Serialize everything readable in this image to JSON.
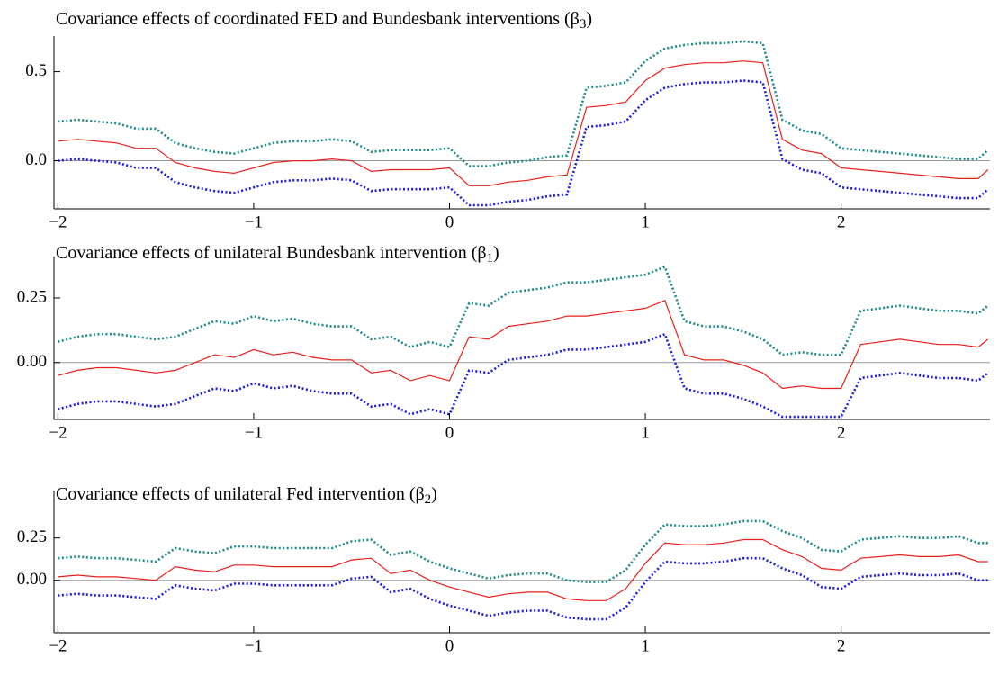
{
  "chart_data": [
    {
      "type": "line",
      "title": "Covariance effects of coordinated FED and Bundesbank interventions (β",
      "title_subscript": "3",
      "title_close": ")",
      "x": [
        -2,
        -1.9,
        -1.8,
        -1.7,
        -1.6,
        -1.5,
        -1.4,
        -1.3,
        -1.2,
        -1.1,
        -1,
        -0.9,
        -0.8,
        -0.7,
        -0.6,
        -0.5,
        -0.4,
        -0.3,
        -0.2,
        -0.1,
        0,
        0.1,
        0.2,
        0.3,
        0.4,
        0.5,
        0.6,
        0.7,
        0.8,
        0.9,
        1,
        1.1,
        1.2,
        1.3,
        1.4,
        1.5,
        1.6,
        1.7,
        1.8,
        1.9,
        2,
        2.1,
        2.2,
        2.3,
        2.4,
        2.5,
        2.6,
        2.7,
        2.75
      ],
      "series": [
        {
          "color": "#1a8a8a",
          "style": "dotted",
          "values": [
            0.22,
            0.23,
            0.22,
            0.21,
            0.18,
            0.18,
            0.1,
            0.07,
            0.05,
            0.04,
            0.07,
            0.1,
            0.11,
            0.11,
            0.12,
            0.11,
            0.05,
            0.06,
            0.06,
            0.06,
            0.07,
            -0.03,
            -0.03,
            -0.01,
            0.0,
            0.02,
            0.03,
            0.41,
            0.42,
            0.44,
            0.56,
            0.63,
            0.65,
            0.66,
            0.66,
            0.67,
            0.66,
            0.23,
            0.17,
            0.15,
            0.07,
            0.06,
            0.05,
            0.04,
            0.03,
            0.02,
            0.01,
            0.01,
            0.06
          ]
        },
        {
          "color": "#e8201c",
          "style": "solid",
          "values": [
            0.11,
            0.12,
            0.11,
            0.1,
            0.07,
            0.07,
            -0.01,
            -0.04,
            -0.06,
            -0.07,
            -0.04,
            -0.01,
            0.0,
            0.0,
            0.01,
            0.0,
            -0.06,
            -0.05,
            -0.05,
            -0.05,
            -0.04,
            -0.14,
            -0.14,
            -0.12,
            -0.11,
            -0.09,
            -0.08,
            0.3,
            0.31,
            0.33,
            0.45,
            0.52,
            0.54,
            0.55,
            0.55,
            0.56,
            0.55,
            0.12,
            0.06,
            0.04,
            -0.04,
            -0.05,
            -0.06,
            -0.07,
            -0.08,
            -0.09,
            -0.1,
            -0.1,
            -0.05
          ]
        },
        {
          "color": "#1a1ae0",
          "style": "dotted",
          "values": [
            0.0,
            0.01,
            0.0,
            -0.01,
            -0.04,
            -0.04,
            -0.12,
            -0.15,
            -0.17,
            -0.18,
            -0.15,
            -0.12,
            -0.11,
            -0.11,
            -0.1,
            -0.11,
            -0.17,
            -0.16,
            -0.16,
            -0.16,
            -0.15,
            -0.25,
            -0.25,
            -0.23,
            -0.22,
            -0.2,
            -0.19,
            0.19,
            0.2,
            0.22,
            0.34,
            0.41,
            0.43,
            0.44,
            0.44,
            0.45,
            0.44,
            0.01,
            -0.05,
            -0.07,
            -0.15,
            -0.16,
            -0.17,
            -0.18,
            -0.19,
            -0.2,
            -0.21,
            -0.21,
            -0.16
          ]
        }
      ],
      "xlim": [
        -2.02,
        2.76
      ],
      "xticks": [
        {
          "value": -2,
          "label": "−2"
        },
        {
          "value": -1,
          "label": "−1"
        },
        0,
        1,
        2
      ],
      "ylim": [
        -0.27,
        0.7
      ],
      "yticks": [
        {
          "value": 0,
          "label": "0.0"
        },
        0.5
      ],
      "reference_line": 0
    },
    {
      "type": "line",
      "title": "Covariance effects of unilateral Bundesbank intervention (β",
      "title_subscript": "1",
      "title_close": ")",
      "x": [
        -2,
        -1.9,
        -1.8,
        -1.7,
        -1.6,
        -1.5,
        -1.4,
        -1.3,
        -1.2,
        -1.1,
        -1,
        -0.9,
        -0.8,
        -0.7,
        -0.6,
        -0.5,
        -0.4,
        -0.3,
        -0.2,
        -0.1,
        0,
        0.1,
        0.2,
        0.3,
        0.4,
        0.5,
        0.6,
        0.7,
        0.8,
        0.9,
        1,
        1.1,
        1.2,
        1.3,
        1.4,
        1.5,
        1.6,
        1.7,
        1.8,
        1.9,
        2,
        2.1,
        2.2,
        2.3,
        2.4,
        2.5,
        2.6,
        2.7,
        2.75
      ],
      "series": [
        {
          "color": "#1a8a8a",
          "style": "dotted",
          "values": [
            0.08,
            0.1,
            0.11,
            0.11,
            0.1,
            0.09,
            0.1,
            0.13,
            0.16,
            0.15,
            0.18,
            0.16,
            0.17,
            0.15,
            0.14,
            0.14,
            0.09,
            0.1,
            0.06,
            0.08,
            0.06,
            0.23,
            0.22,
            0.27,
            0.28,
            0.29,
            0.31,
            0.31,
            0.32,
            0.33,
            0.34,
            0.37,
            0.16,
            0.14,
            0.14,
            0.12,
            0.09,
            0.03,
            0.04,
            0.03,
            0.03,
            0.2,
            0.21,
            0.22,
            0.21,
            0.2,
            0.2,
            0.19,
            0.22
          ]
        },
        {
          "color": "#e8201c",
          "style": "solid",
          "values": [
            -0.05,
            -0.03,
            -0.02,
            -0.02,
            -0.03,
            -0.04,
            -0.03,
            0.0,
            0.03,
            0.02,
            0.05,
            0.03,
            0.04,
            0.02,
            0.01,
            0.01,
            -0.04,
            -0.03,
            -0.07,
            -0.05,
            -0.07,
            0.1,
            0.09,
            0.14,
            0.15,
            0.16,
            0.18,
            0.18,
            0.19,
            0.2,
            0.21,
            0.24,
            0.03,
            0.01,
            0.01,
            -0.01,
            -0.04,
            -0.1,
            -0.09,
            -0.1,
            -0.1,
            0.07,
            0.08,
            0.09,
            0.08,
            0.07,
            0.07,
            0.06,
            0.09
          ]
        },
        {
          "color": "#1a1ae0",
          "style": "dotted",
          "values": [
            -0.18,
            -0.16,
            -0.15,
            -0.15,
            -0.16,
            -0.17,
            -0.16,
            -0.13,
            -0.1,
            -0.11,
            -0.08,
            -0.1,
            -0.09,
            -0.11,
            -0.12,
            -0.12,
            -0.17,
            -0.16,
            -0.2,
            -0.18,
            -0.2,
            -0.03,
            -0.04,
            0.01,
            0.02,
            0.03,
            0.05,
            0.05,
            0.06,
            0.07,
            0.08,
            0.11,
            -0.1,
            -0.12,
            -0.12,
            -0.14,
            -0.17,
            -0.21,
            -0.21,
            -0.21,
            -0.21,
            -0.06,
            -0.05,
            -0.04,
            -0.05,
            -0.06,
            -0.06,
            -0.07,
            -0.04
          ]
        }
      ],
      "xlim": [
        -2.02,
        2.76
      ],
      "xticks": [
        {
          "value": -2,
          "label": "−2"
        },
        {
          "value": -1,
          "label": "−1"
        },
        0,
        1,
        2
      ],
      "ylim": [
        -0.22,
        0.41
      ],
      "yticks": [
        {
          "value": 0,
          "label": "0.00"
        },
        0.25
      ],
      "reference_line": 0
    },
    {
      "type": "line",
      "title": "Covariance effects of unilateral Fed intervention (β",
      "title_subscript": "2",
      "title_close": ")",
      "x": [
        -2,
        -1.9,
        -1.8,
        -1.7,
        -1.6,
        -1.5,
        -1.4,
        -1.3,
        -1.2,
        -1.1,
        -1,
        -0.9,
        -0.8,
        -0.7,
        -0.6,
        -0.5,
        -0.4,
        -0.3,
        -0.2,
        -0.1,
        0,
        0.1,
        0.2,
        0.3,
        0.4,
        0.5,
        0.6,
        0.7,
        0.8,
        0.9,
        1,
        1.1,
        1.2,
        1.3,
        1.4,
        1.5,
        1.6,
        1.7,
        1.8,
        1.9,
        2,
        2.1,
        2.2,
        2.3,
        2.4,
        2.5,
        2.6,
        2.7,
        2.75
      ],
      "series": [
        {
          "color": "#1a8a8a",
          "style": "dotted",
          "values": [
            0.13,
            0.14,
            0.13,
            0.13,
            0.12,
            0.11,
            0.19,
            0.17,
            0.16,
            0.2,
            0.2,
            0.19,
            0.19,
            0.19,
            0.19,
            0.23,
            0.24,
            0.15,
            0.17,
            0.11,
            0.07,
            0.04,
            0.01,
            0.03,
            0.04,
            0.04,
            0.0,
            -0.01,
            -0.01,
            0.06,
            0.21,
            0.33,
            0.32,
            0.32,
            0.33,
            0.35,
            0.35,
            0.29,
            0.25,
            0.18,
            0.17,
            0.24,
            0.25,
            0.26,
            0.25,
            0.25,
            0.26,
            0.22,
            0.22
          ]
        },
        {
          "color": "#e8201c",
          "style": "solid",
          "values": [
            0.02,
            0.03,
            0.02,
            0.02,
            0.01,
            0.0,
            0.08,
            0.06,
            0.05,
            0.09,
            0.09,
            0.08,
            0.08,
            0.08,
            0.08,
            0.12,
            0.13,
            0.04,
            0.06,
            0.0,
            -0.04,
            -0.07,
            -0.1,
            -0.08,
            -0.07,
            -0.07,
            -0.11,
            -0.12,
            -0.12,
            -0.05,
            0.1,
            0.22,
            0.21,
            0.21,
            0.22,
            0.24,
            0.24,
            0.18,
            0.14,
            0.07,
            0.06,
            0.13,
            0.14,
            0.15,
            0.14,
            0.14,
            0.15,
            0.11,
            0.11
          ]
        },
        {
          "color": "#1a1ae0",
          "style": "dotted",
          "values": [
            -0.09,
            -0.08,
            -0.09,
            -0.09,
            -0.1,
            -0.11,
            -0.03,
            -0.05,
            -0.06,
            -0.02,
            -0.02,
            -0.03,
            -0.03,
            -0.03,
            -0.03,
            0.01,
            0.02,
            -0.07,
            -0.05,
            -0.11,
            -0.15,
            -0.18,
            -0.21,
            -0.19,
            -0.18,
            -0.18,
            -0.22,
            -0.23,
            -0.23,
            -0.16,
            -0.01,
            0.11,
            0.1,
            0.1,
            0.11,
            0.13,
            0.13,
            0.07,
            0.03,
            -0.04,
            -0.05,
            0.02,
            0.03,
            0.04,
            0.03,
            0.03,
            0.04,
            0.0,
            0.0
          ]
        }
      ],
      "xlim": [
        -2.02,
        2.76
      ],
      "xticks": [
        {
          "value": -2,
          "label": "−2"
        },
        {
          "value": -1,
          "label": "−1"
        },
        0,
        1,
        2
      ],
      "ylim": [
        -0.31,
        0.53
      ],
      "yticks": [
        {
          "value": 0,
          "label": "0.00"
        },
        0.25
      ],
      "reference_line": 0
    }
  ]
}
